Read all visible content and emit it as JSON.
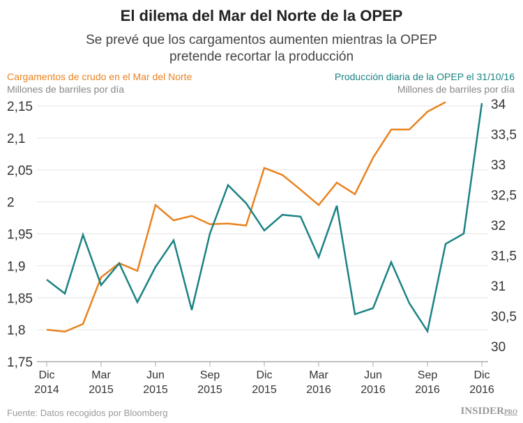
{
  "chart_data": {
    "type": "line",
    "title": "El dilema del Mar del Norte de la OPEP",
    "subtitle": [
      "Se prevé que los cargamentos aumenten mientras la OPEP",
      "pretende recortar la producción"
    ],
    "x_ticks": [
      {
        "month": "Dic",
        "year": "2014"
      },
      {
        "month": "Mar",
        "year": "2015"
      },
      {
        "month": "Jun",
        "year": "2015"
      },
      {
        "month": "Sep",
        "year": "2015"
      },
      {
        "month": "Dic",
        "year": "2015"
      },
      {
        "month": "Mar",
        "year": "2016"
      },
      {
        "month": "Jun",
        "year": "2016"
      },
      {
        "month": "Sep",
        "year": "2016"
      },
      {
        "month": "Dic",
        "year": "2016"
      }
    ],
    "x": [
      "2014-12",
      "2015-01",
      "2015-02",
      "2015-03",
      "2015-04",
      "2015-05",
      "2015-06",
      "2015-07",
      "2015-08",
      "2015-09",
      "2015-10",
      "2015-11",
      "2015-12",
      "2016-01",
      "2016-02",
      "2016-03",
      "2016-04",
      "2016-05",
      "2016-06",
      "2016-07",
      "2016-08",
      "2016-09",
      "2016-10",
      "2016-11",
      "2016-12"
    ],
    "left_axis": {
      "ylim": [
        1.75,
        2.15
      ],
      "ticks": [
        "1,75",
        "1,8",
        "1,85",
        "1,9",
        "1,95",
        "2",
        "2,05",
        "2,1",
        "2,15"
      ]
    },
    "right_axis": {
      "ylim": [
        30,
        34
      ],
      "ticks": [
        "30",
        "30,5",
        "31",
        "31,5",
        "32",
        "32,5",
        "33",
        "33,5",
        "34"
      ]
    },
    "series": [
      {
        "name": "Cargamentos de crudo en el Mar del Norte",
        "unit": "Millones de barriles por día",
        "axis": "left",
        "color": "#e8831f",
        "values": [
          1.8,
          1.797,
          1.809,
          1.882,
          1.904,
          1.892,
          1.995,
          1.971,
          1.978,
          1.965,
          1.966,
          1.963,
          2.053,
          2.042,
          2.019,
          1.995,
          2.03,
          2.012,
          2.069,
          2.113,
          2.113,
          2.141,
          2.156,
          null,
          null
        ]
      },
      {
        "name": "Producción diaria de la OPEP el 31/10/16",
        "unit": "Millones de barriles por día",
        "axis": "right",
        "color": "#1b8283",
        "values": [
          31.1,
          30.87,
          31.84,
          31.01,
          31.37,
          30.73,
          31.31,
          31.75,
          30.6,
          31.86,
          32.66,
          32.36,
          31.91,
          32.17,
          32.14,
          31.47,
          32.32,
          30.53,
          30.63,
          31.39,
          30.71,
          30.25,
          31.69,
          31.86,
          34.01
        ]
      }
    ],
    "grid": true
  },
  "footer": {
    "source": "Fuente: Datos recogidos por Bloomberg",
    "logo": "INSIDER",
    "logo_suffix": "PRO"
  }
}
